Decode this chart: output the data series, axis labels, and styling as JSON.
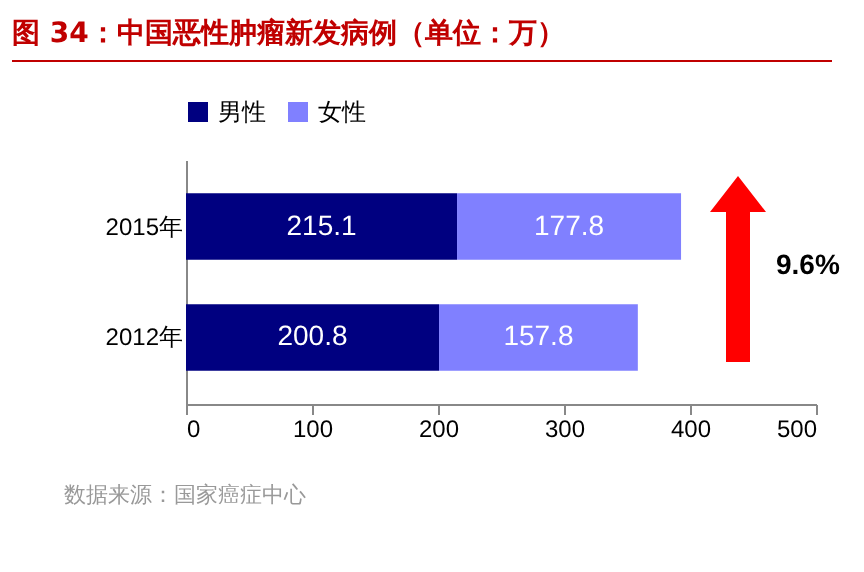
{
  "chart_data": {
    "type": "bar",
    "title": "图 34：中国恶性肿瘤新发病例（单位：万）",
    "orientation": "horizontal",
    "stacked": true,
    "categories": [
      "2015年",
      "2012年"
    ],
    "series": [
      {
        "name": "男性",
        "color": "#000080",
        "values": [
          215.1,
          200.8
        ]
      },
      {
        "name": "女性",
        "color": "#8080ff",
        "values": [
          177.8,
          157.8
        ]
      }
    ],
    "xlim": [
      0,
      500
    ],
    "xticks": [
      0,
      100,
      200,
      300,
      400,
      500
    ],
    "data_labels": true,
    "legend": "top",
    "annotations": [
      "9.6%",
      "数据来源：国家癌症中心"
    ]
  }
}
